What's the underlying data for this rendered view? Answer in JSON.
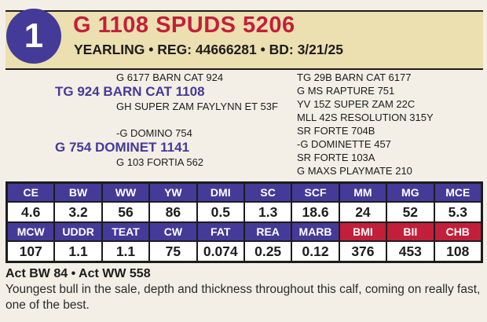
{
  "lot_number": "1",
  "name": "G 1108 SPUDS 5206",
  "subtitle": "YEARLING • REG: 44666281 • BD: 3/21/25",
  "pedigree": {
    "sire": "TG 924 BARN CAT 1108",
    "sire_sire": "G 6177 BARN CAT 924",
    "sire_dam": "GH SUPER ZAM FAYLYNN ET 53F",
    "dam": "G 754 DOMINET 1141",
    "dam_sire": "-G DOMINO 754",
    "dam_dam": "G 103 FORTIA 562",
    "third_generation": [
      "TG 29B BARN CAT 6177",
      "G MS RAPTURE 751",
      "YV 15Z SUPER ZAM 22C",
      "MLL 42S RESOLUTION 315Y",
      "SR FORTE 704B",
      "-G DOMINETTE 457",
      "SR FORTE 103A",
      "G MAXS PLAYMATE 210"
    ]
  },
  "epd_row1": {
    "headers": [
      "CE",
      "BW",
      "WW",
      "YW",
      "DMI",
      "SC",
      "SCF",
      "MM",
      "MG",
      "MCE"
    ],
    "values": [
      "4.6",
      "3.2",
      "56",
      "86",
      "0.5",
      "1.3",
      "18.6",
      "24",
      "52",
      "5.3"
    ]
  },
  "epd_row2": {
    "headers": [
      "MCW",
      "UDDR",
      "TEAT",
      "CW",
      "FAT",
      "REA",
      "MARB",
      "BMI",
      "BII",
      "CHB"
    ],
    "values": [
      "107",
      "1.1",
      "1.1",
      "75",
      "0.074",
      "0.25",
      "0.12",
      "376",
      "453",
      "108"
    ]
  },
  "actuals": "Act BW 84 • Act WW 558",
  "description": "Youngest bull in the sale, depth and thickness throughout this calf, coming on really fast, one of the best.",
  "colors": {
    "purple": "#443a98",
    "red": "#c21f3a",
    "band": "#ecdfb0"
  }
}
